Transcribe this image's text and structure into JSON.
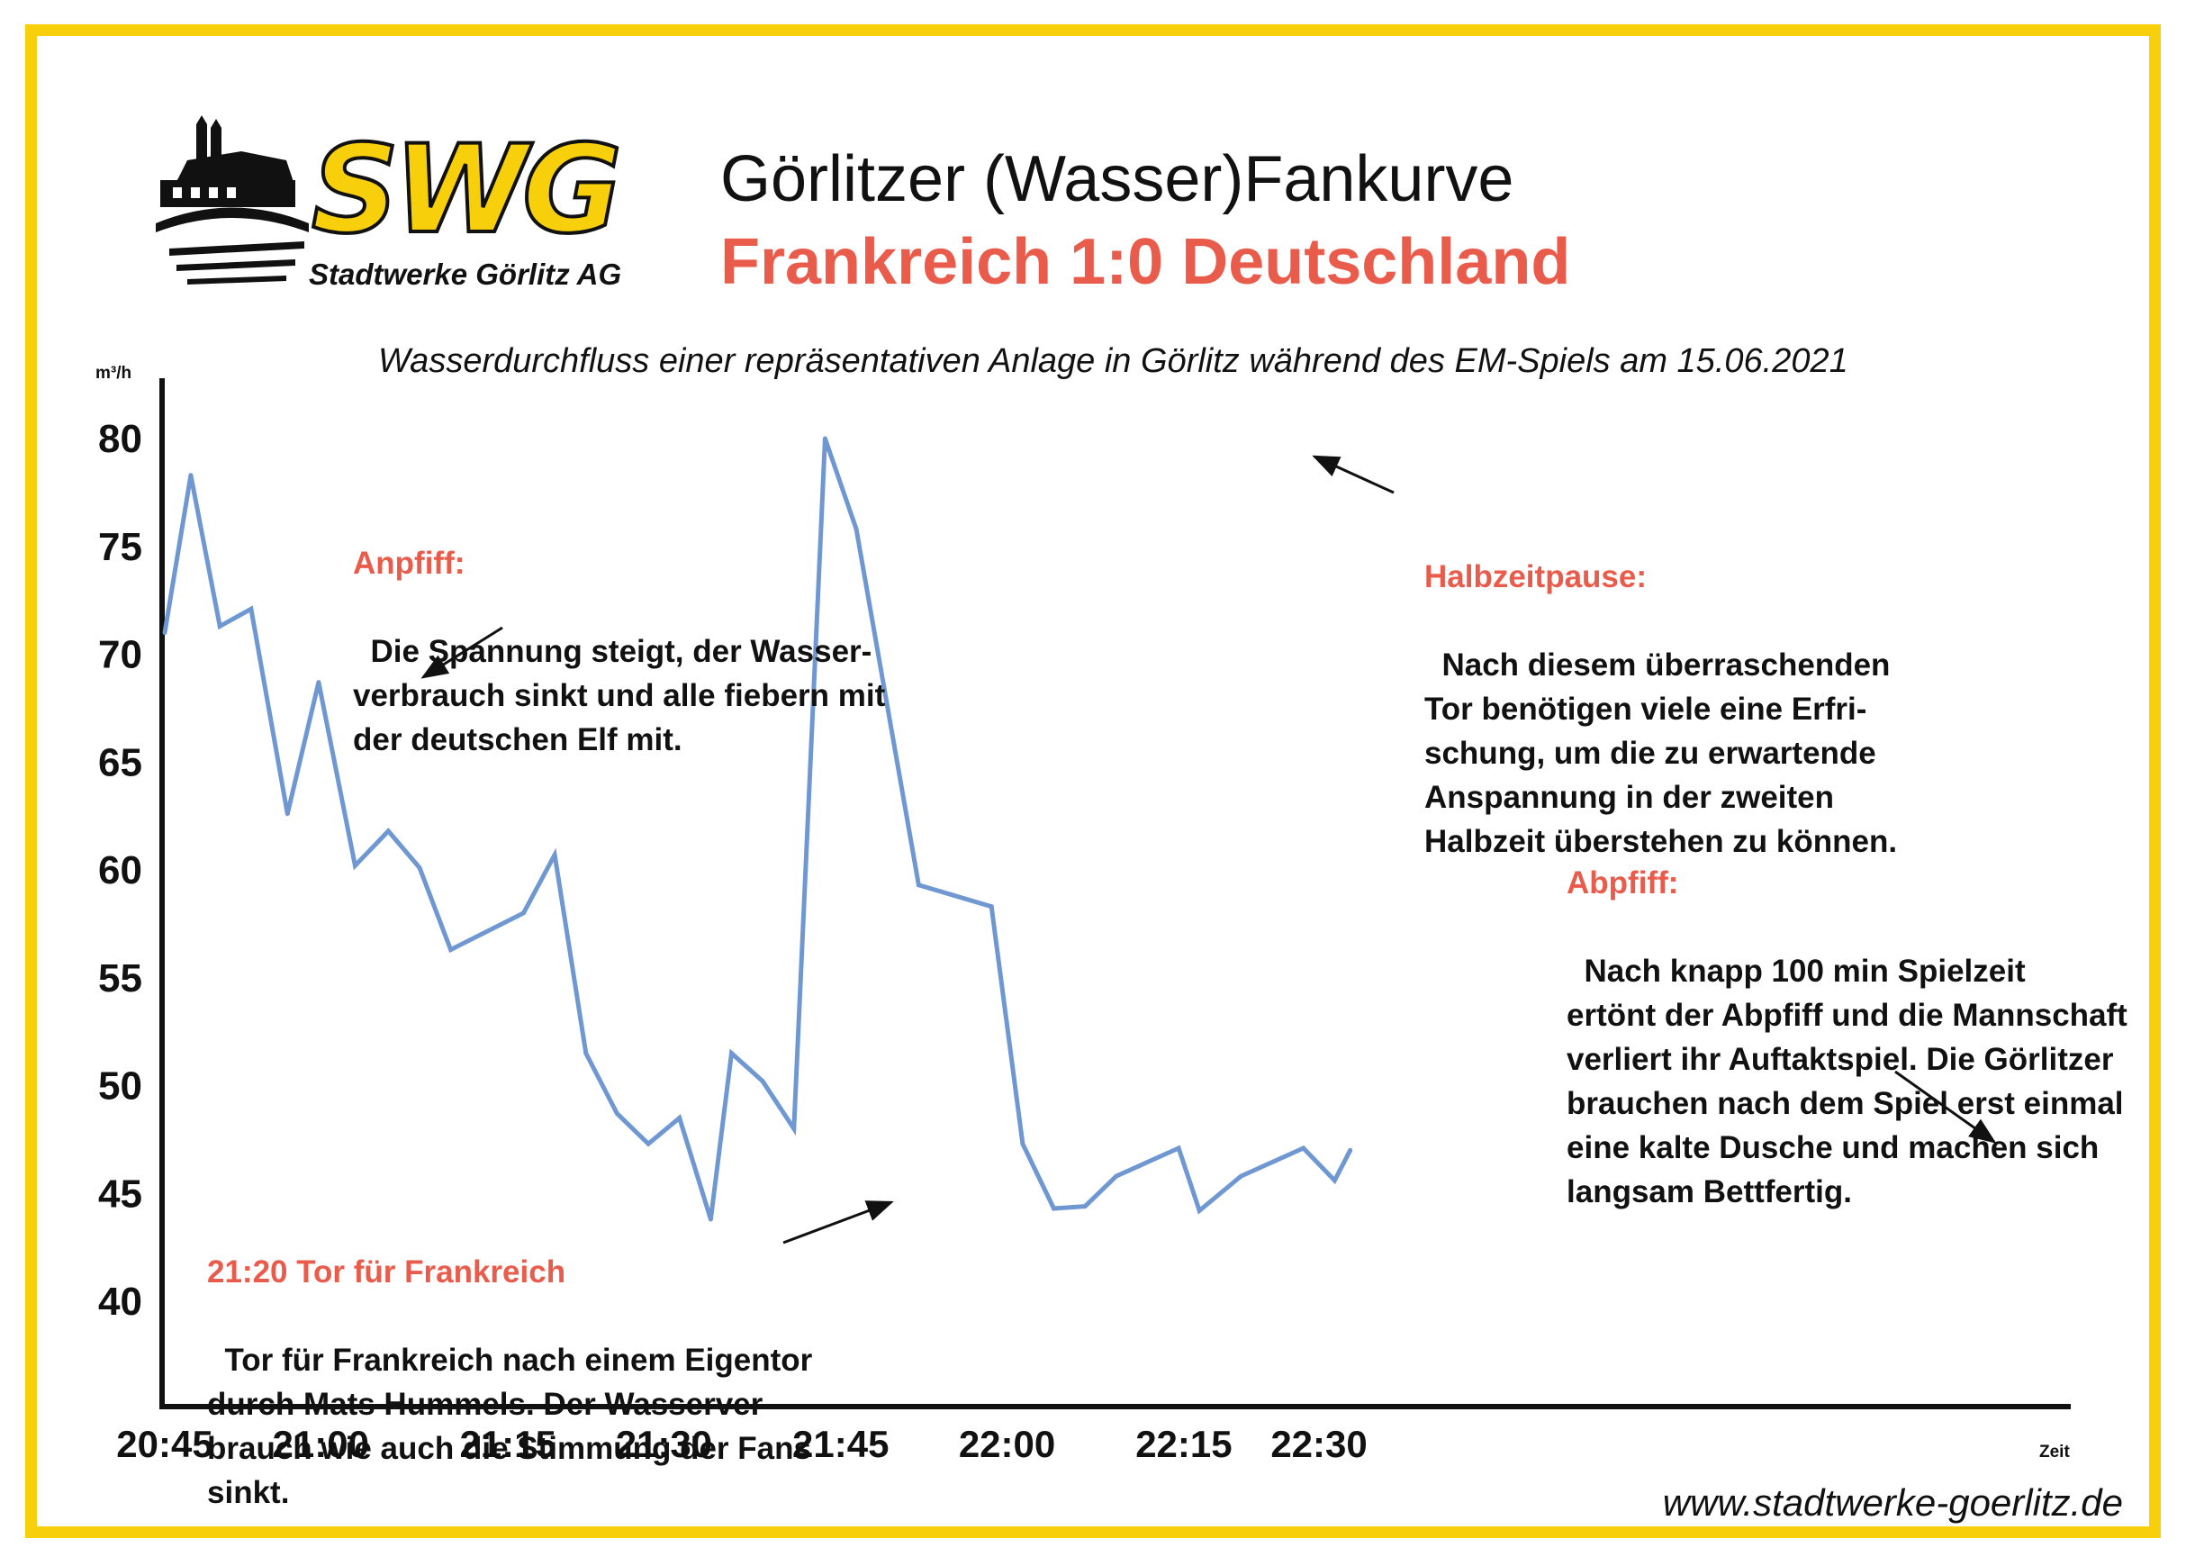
{
  "brand": {
    "logo_text": "SWG",
    "logo_subtitle": "Stadtwerke Görlitz AG"
  },
  "header": {
    "title": "Görlitzer (Wasser)Fankurve",
    "subtitle": "Frankreich 1:0 Deutschland",
    "description": "Wasserdurchfluss einer repräsentativen Anlage in Görlitz während des EM-Spiels am 15.06.2021"
  },
  "footer": {
    "url": "www.stadtwerke-goerlitz.de"
  },
  "colors": {
    "frame": "#f7cf0a",
    "accent": "#e95c4b",
    "line": "#6f98d2"
  },
  "annotations": {
    "anpfiff": {
      "heading": "Anpfiff:",
      "text": "Die Spannung steigt, der Wasser-\nverbrauch sinkt und alle fiebern mit\nder deutschen Elf mit."
    },
    "tor": {
      "heading": "21:20 Tor für Frankreich",
      "text": "Tor für Frankreich nach einem Eigentor\ndurch Mats Hummels. Der Wasserver-\nbrauch wie auch die Stimmung der Fans\nsinkt."
    },
    "halbzeit": {
      "heading": "Halbzeitpause:",
      "text": "Nach diesem überraschenden\nTor benötigen viele eine Erfri-\nschung, um die zu erwartende\nAnspannung in der zweiten\nHalbzeit überstehen zu können."
    },
    "abpfiff": {
      "heading": "Abpfiff:",
      "text": "Nach knapp 100 min Spielzeit\nertönt der Abpfiff und die Mannschaft\nverliert ihr Auftaktspiel. Die Görlitzer\nbrauchen nach dem Spiel erst einmal\neine kalte Dusche und machen sich\nlangsam Bettfertig."
    }
  },
  "chart_data": {
    "type": "line",
    "title": "Görlitzer (Wasser)Fankurve",
    "subtitle": "Frankreich 1:0 Deutschland",
    "xlabel": "Zeit",
    "ylabel": "m³/h",
    "ylim": [
      35,
      82
    ],
    "y_ticks": [
      40,
      45,
      50,
      55,
      60,
      65,
      70,
      75,
      80
    ],
    "x_tick_labels": [
      "20:45",
      "21:00",
      "21:15",
      "21:30",
      "21:45",
      "22:00",
      "22:15",
      "22:30"
    ],
    "x_tick_minutes": [
      0,
      15,
      33,
      48,
      65,
      81,
      98,
      111
    ],
    "grid": false,
    "legend": "none",
    "series": [
      {
        "x_minutes": [
          0,
          2.5,
          5.3,
          8.3,
          11.8,
          14.8,
          18.3,
          21.5,
          24.5,
          27.5,
          34.5,
          37.5,
          40.5,
          43.5,
          46.5,
          49.5,
          52.5,
          54.5,
          57.5,
          60.5,
          63.5,
          66.5,
          72.5,
          79.5,
          82.5,
          85.5,
          88.5,
          91.5,
          97.5,
          99.5,
          103.5,
          109.5,
          112.5,
          114
        ],
        "values": [
          71,
          78.3,
          71.3,
          72.1,
          62.6,
          68.7,
          60.2,
          61.8,
          60.1,
          56.3,
          58,
          60.7,
          51.5,
          48.7,
          47.3,
          48.5,
          43.8,
          51.5,
          50.2,
          48,
          80,
          75.8,
          59.3,
          58.3,
          47.3,
          44.3,
          44.4,
          45.8,
          47.1,
          44.2,
          45.8,
          47.1,
          45.6,
          47
        ]
      }
    ]
  }
}
